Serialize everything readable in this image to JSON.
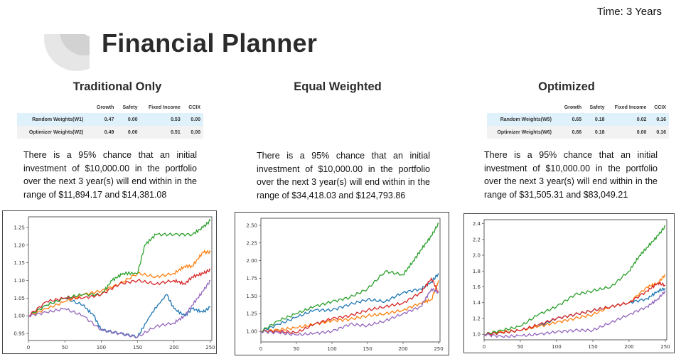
{
  "header": {
    "time_label": "Time: 3 Years",
    "title": "Financial Planner"
  },
  "columns": [
    {
      "title": "Traditional Only",
      "table": {
        "headers": [
          "",
          "Growth",
          "Safety",
          "Fixed Income",
          "CCIX"
        ],
        "rows": [
          [
            "Random Weights(W1)",
            "0.47",
            "0.00",
            "0.53",
            "0.00"
          ],
          [
            "Optimizer Weights(W2)",
            "0.49",
            "0.00",
            "0.51",
            "0.00"
          ]
        ]
      },
      "description": "There is a 95% chance that an initial investment of $10,000.00 in the portfolio over the next 3 year(s) will end within in the range of $11,894.17 and $14,381.08"
    },
    {
      "title": "Equal Weighted",
      "table": null,
      "description": "There is a 95% chance that an initial investment of $10,000.00 in the portfolio over the next 3 year(s) will end within in the range of $34,418.03 and $124,793.86"
    },
    {
      "title": "Optimized",
      "table": {
        "headers": [
          "",
          "Growth",
          "Safety",
          "Fixed Income",
          "CCIX"
        ],
        "rows": [
          [
            "Random Weights(W5)",
            "0.65",
            "0.18",
            "0.02",
            "0.16"
          ],
          [
            "Optimizer Weights(W6)",
            "0.66",
            "0.18",
            "0.00",
            "0.16"
          ]
        ]
      },
      "description": "There is a 95% chance that an initial investment of $10,000.00 in the portfolio over the next 3 year(s) will end within in the range of $31,505.31 and $83,049.21"
    }
  ],
  "chart_data": [
    {
      "type": "line",
      "xlim": [
        0,
        252
      ],
      "ylim": [
        0.93,
        1.28
      ],
      "xticks": [
        0,
        50,
        100,
        150,
        200,
        250
      ],
      "yticks": [
        0.95,
        1.0,
        1.05,
        1.1,
        1.15,
        1.2,
        1.25
      ],
      "ytick_labels": [
        "0.95",
        "1.00",
        "1.05",
        "1.10",
        "1.15",
        "1.20",
        "1.25"
      ],
      "series": [
        {
          "color": "#1f77b4",
          "x": [
            0,
            25,
            50,
            75,
            90,
            100,
            125,
            150,
            170,
            190,
            200,
            215,
            225,
            240,
            250
          ],
          "y": [
            1.0,
            1.03,
            1.05,
            1.03,
            1.0,
            0.96,
            0.95,
            0.94,
            1.01,
            1.06,
            1.02,
            1.0,
            1.02,
            1.01,
            1.025
          ]
        },
        {
          "color": "#ff7f0e",
          "x": [
            0,
            25,
            50,
            75,
            100,
            125,
            150,
            175,
            200,
            215,
            225,
            240,
            250
          ],
          "y": [
            1.0,
            1.02,
            1.04,
            1.06,
            1.07,
            1.09,
            1.12,
            1.11,
            1.12,
            1.14,
            1.14,
            1.18,
            1.18
          ]
        },
        {
          "color": "#2ca02c",
          "x": [
            0,
            25,
            50,
            75,
            100,
            115,
            130,
            150,
            160,
            175,
            200,
            225,
            240,
            250
          ],
          "y": [
            1.0,
            1.03,
            1.05,
            1.06,
            1.06,
            1.1,
            1.12,
            1.12,
            1.2,
            1.23,
            1.23,
            1.23,
            1.25,
            1.27
          ]
        },
        {
          "color": "#d62728",
          "x": [
            0,
            25,
            50,
            75,
            100,
            125,
            150,
            175,
            200,
            215,
            225,
            240,
            250
          ],
          "y": [
            1.0,
            1.04,
            1.05,
            1.05,
            1.06,
            1.09,
            1.1,
            1.09,
            1.1,
            1.09,
            1.11,
            1.12,
            1.13
          ]
        },
        {
          "color": "#9467bd",
          "x": [
            0,
            25,
            50,
            75,
            100,
            125,
            150,
            175,
            200,
            215,
            225,
            240,
            250
          ],
          "y": [
            1.0,
            1.01,
            1.02,
            1.0,
            0.96,
            0.95,
            0.94,
            0.97,
            0.98,
            1.0,
            1.03,
            1.07,
            1.1
          ]
        }
      ]
    },
    {
      "type": "line",
      "xlim": [
        0,
        252
      ],
      "ylim": [
        0.85,
        2.6
      ],
      "xticks": [
        0,
        50,
        100,
        150,
        200,
        250
      ],
      "yticks": [
        1.0,
        1.25,
        1.5,
        1.75,
        2.0,
        2.25,
        2.5
      ],
      "ytick_labels": [
        "1.00",
        "1.25",
        "1.50",
        "1.75",
        "2.00",
        "2.25",
        "2.50"
      ],
      "series": [
        {
          "color": "#1f77b4",
          "x": [
            0,
            25,
            50,
            75,
            100,
            125,
            150,
            175,
            200,
            225,
            240,
            250
          ],
          "y": [
            1.0,
            1.1,
            1.2,
            1.3,
            1.3,
            1.38,
            1.45,
            1.42,
            1.55,
            1.6,
            1.7,
            1.82
          ]
        },
        {
          "color": "#ff7f0e",
          "x": [
            0,
            25,
            50,
            75,
            100,
            125,
            150,
            175,
            200,
            225,
            240,
            250
          ],
          "y": [
            1.0,
            1.02,
            1.05,
            1.1,
            1.15,
            1.17,
            1.22,
            1.25,
            1.3,
            1.4,
            1.45,
            1.72
          ]
        },
        {
          "color": "#2ca02c",
          "x": [
            0,
            25,
            50,
            75,
            100,
            125,
            150,
            175,
            200,
            215,
            225,
            240,
            250
          ],
          "y": [
            1.0,
            1.15,
            1.25,
            1.35,
            1.42,
            1.48,
            1.6,
            1.85,
            1.8,
            2.0,
            2.15,
            2.35,
            2.53
          ]
        },
        {
          "color": "#d62728",
          "x": [
            0,
            25,
            50,
            75,
            100,
            125,
            150,
            175,
            200,
            225,
            240,
            250
          ],
          "y": [
            1.0,
            1.0,
            0.98,
            1.1,
            1.18,
            1.22,
            1.3,
            1.35,
            1.4,
            1.55,
            1.75,
            1.55
          ]
        },
        {
          "color": "#9467bd",
          "x": [
            0,
            25,
            50,
            75,
            100,
            125,
            150,
            175,
            200,
            225,
            240,
            250
          ],
          "y": [
            1.0,
            0.98,
            0.95,
            0.97,
            1.0,
            1.1,
            1.08,
            1.15,
            1.25,
            1.35,
            1.6,
            1.55
          ]
        }
      ]
    },
    {
      "type": "line",
      "xlim": [
        0,
        252
      ],
      "ylim": [
        0.93,
        2.45
      ],
      "xticks": [
        0,
        50,
        100,
        150,
        200,
        250
      ],
      "yticks": [
        1.0,
        1.2,
        1.4,
        1.6,
        1.8,
        2.0,
        2.2,
        2.4
      ],
      "ytick_labels": [
        "1.0",
        "1.2",
        "1.4",
        "1.6",
        "1.8",
        "2.0",
        "2.2",
        "2.4"
      ],
      "series": [
        {
          "color": "#1f77b4",
          "x": [
            0,
            25,
            50,
            75,
            100,
            125,
            150,
            175,
            200,
            225,
            240,
            250
          ],
          "y": [
            1.0,
            1.02,
            1.05,
            1.1,
            1.2,
            1.25,
            1.3,
            1.35,
            1.4,
            1.45,
            1.55,
            1.58
          ]
        },
        {
          "color": "#ff7f0e",
          "x": [
            0,
            25,
            50,
            75,
            100,
            125,
            150,
            175,
            200,
            225,
            240,
            250
          ],
          "y": [
            1.0,
            1.03,
            1.05,
            1.1,
            1.15,
            1.2,
            1.25,
            1.35,
            1.4,
            1.6,
            1.65,
            1.76
          ]
        },
        {
          "color": "#2ca02c",
          "x": [
            0,
            25,
            50,
            75,
            100,
            125,
            150,
            175,
            200,
            215,
            225,
            240,
            250
          ],
          "y": [
            1.0,
            1.05,
            1.1,
            1.25,
            1.35,
            1.5,
            1.55,
            1.6,
            1.8,
            2.0,
            2.1,
            2.25,
            2.37
          ]
        },
        {
          "color": "#d62728",
          "x": [
            0,
            25,
            50,
            75,
            100,
            125,
            150,
            175,
            200,
            225,
            240,
            250
          ],
          "y": [
            1.0,
            1.02,
            1.05,
            1.12,
            1.2,
            1.25,
            1.3,
            1.35,
            1.4,
            1.55,
            1.65,
            1.62
          ]
        },
        {
          "color": "#9467bd",
          "x": [
            0,
            25,
            50,
            75,
            100,
            125,
            150,
            175,
            200,
            225,
            240,
            250
          ],
          "y": [
            1.0,
            0.97,
            0.98,
            1.0,
            1.03,
            1.05,
            1.05,
            1.15,
            1.25,
            1.35,
            1.45,
            1.55
          ]
        }
      ]
    }
  ]
}
